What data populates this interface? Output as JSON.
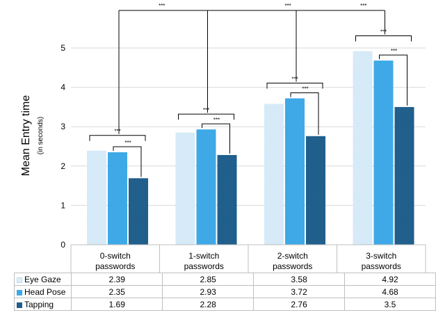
{
  "chart_data": {
    "type": "bar",
    "title": "",
    "ylabel": "Mean Entry time",
    "ylabel_sub": "(in seconds)",
    "xlabel": "",
    "ylim": [
      0,
      5
    ],
    "yticks": [
      "0",
      "1",
      "2",
      "3",
      "4",
      "5"
    ],
    "categories": [
      [
        "0-switch",
        "passwords"
      ],
      [
        "1-switch",
        "passwords"
      ],
      [
        "2-switch",
        "passwords"
      ],
      [
        "3-switch",
        "passwords"
      ]
    ],
    "series": [
      {
        "name": "Eye Gaze",
        "values": [
          2.39,
          2.85,
          3.58,
          4.92
        ],
        "display": [
          "2.39",
          "2.85",
          "3.58",
          "4.92"
        ],
        "color": "#dceefa"
      },
      {
        "name": "Head Pose",
        "values": [
          2.35,
          2.93,
          3.72,
          4.68
        ],
        "display": [
          "2.35",
          "2.93",
          "3.72",
          "4.68"
        ],
        "color": "#3ea9e6"
      },
      {
        "name": "Tapping",
        "values": [
          1.69,
          2.28,
          2.76,
          3.5
        ],
        "display": [
          "1.69",
          "2.28",
          "2.76",
          "3.5"
        ],
        "color": "#1f5d8a"
      }
    ],
    "grid": true,
    "legend": "data-table",
    "significance_label": "***"
  }
}
